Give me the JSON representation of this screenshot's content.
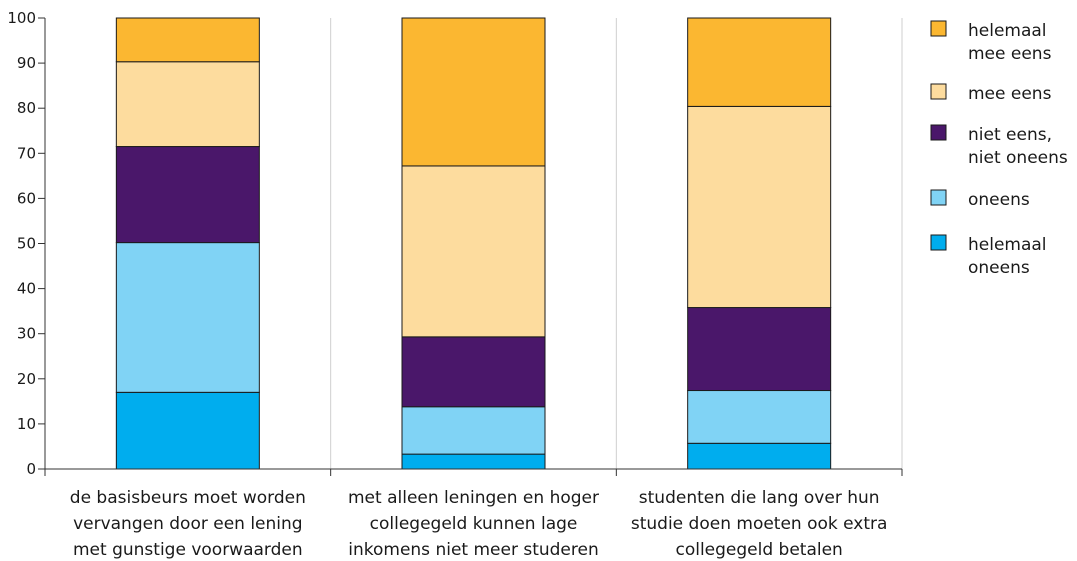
{
  "chart_data": {
    "type": "bar",
    "stacked": true,
    "title": "",
    "xlabel": "",
    "ylabel": "",
    "ylim": [
      0,
      100
    ],
    "yticks": [
      0,
      10,
      20,
      30,
      40,
      50,
      60,
      70,
      80,
      90,
      100
    ],
    "grid": true,
    "legend_position": "right",
    "categories": [
      [
        "de basisbeurs moet worden",
        "vervangen door een lening",
        "met gunstige voorwaarden"
      ],
      [
        "met alleen leningen en hoger",
        "collegegeld kunnen lage",
        "inkomens niet meer studeren"
      ],
      [
        "studenten die lang over hun",
        "studie doen moeten ook extra",
        "collegegeld betalen"
      ]
    ],
    "series": [
      {
        "name": "helemaal oneens",
        "legend_lines": [
          "helemaal",
          "oneens"
        ],
        "color": "#00adee",
        "values": [
          17,
          3.3,
          5.7
        ]
      },
      {
        "name": "oneens",
        "legend_lines": [
          "oneens"
        ],
        "color": "#80d3f5",
        "values": [
          33.2,
          10.5,
          11.7
        ]
      },
      {
        "name": "niet eens, niet oneens",
        "legend_lines": [
          "niet eens,",
          "niet oneens"
        ],
        "color": "#4a176a",
        "values": [
          21.3,
          15.5,
          18.4
        ]
      },
      {
        "name": "mee eens",
        "legend_lines": [
          "mee eens"
        ],
        "color": "#fddc9e",
        "values": [
          18.8,
          37.9,
          44.6
        ]
      },
      {
        "name": "helemaal mee eens",
        "legend_lines": [
          "helemaal",
          "mee eens"
        ],
        "color": "#fbb731",
        "values": [
          9.7,
          32.8,
          19.6
        ]
      }
    ]
  }
}
